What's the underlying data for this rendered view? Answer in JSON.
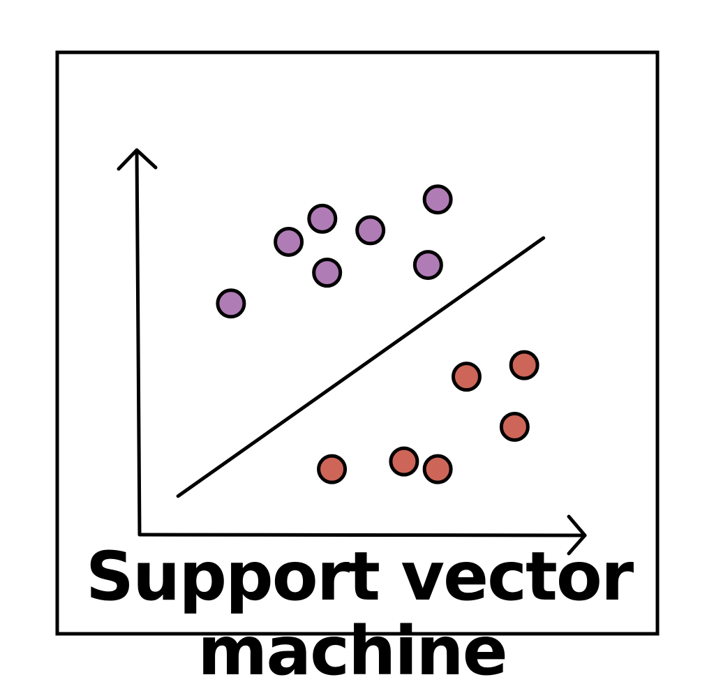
{
  "caption": {
    "line1": "Support vector",
    "line2": "machine"
  },
  "colors": {
    "class_a": "#b07cb6",
    "class_b": "#cd6658",
    "stroke": "#000000"
  },
  "chart_data": {
    "type": "scatter",
    "series": [
      {
        "values": [
          [
            1.9,
            6.0
          ],
          [
            3.1,
            7.6
          ],
          [
            3.8,
            8.2
          ],
          [
            3.9,
            6.8
          ],
          [
            4.8,
            7.9
          ],
          [
            6.0,
            7.0
          ],
          [
            6.2,
            8.7
          ]
        ]
      },
      {
        "values": [
          [
            4.0,
            1.7
          ],
          [
            5.5,
            1.9
          ],
          [
            6.2,
            1.7
          ],
          [
            6.8,
            4.1
          ],
          [
            7.8,
            2.8
          ],
          [
            8.0,
            4.4
          ]
        ]
      }
    ],
    "separator": {
      "from": [
        0.8,
        1.0
      ],
      "to": [
        8.4,
        7.7
      ]
    },
    "xlim": [
      0,
      9
    ],
    "ylim": [
      0,
      10
    ]
  }
}
